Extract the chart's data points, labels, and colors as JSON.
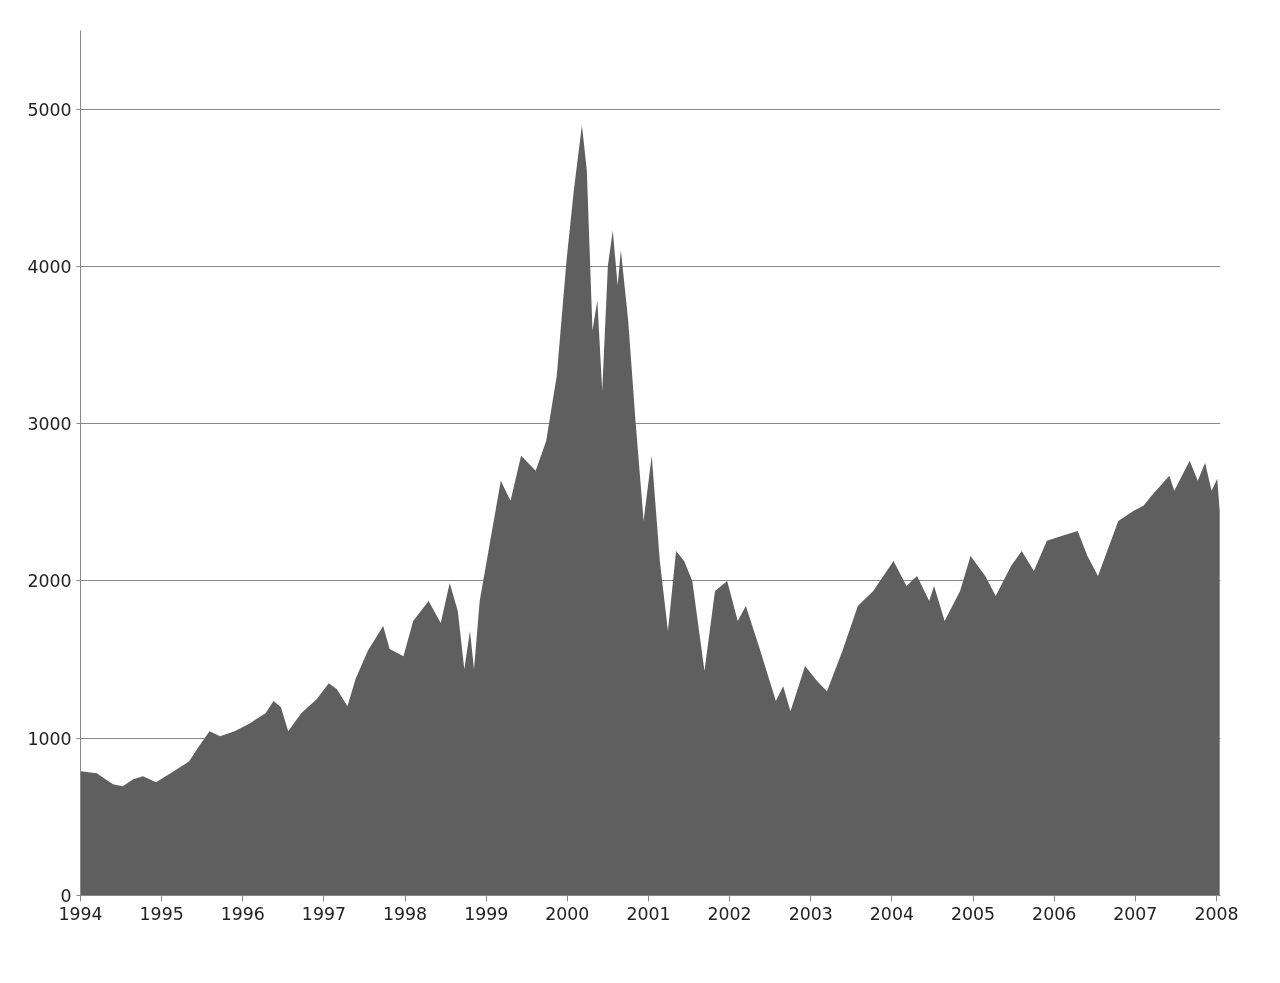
{
  "chart_data": {
    "type": "area",
    "x": [
      1994.0,
      1994.2,
      1994.4,
      1994.52,
      1994.65,
      1994.77,
      1994.93,
      1995.15,
      1995.34,
      1995.46,
      1995.59,
      1995.72,
      1995.9,
      1996.09,
      1996.28,
      1996.38,
      1996.47,
      1996.56,
      1996.72,
      1996.91,
      1997.06,
      1997.16,
      1997.29,
      1997.39,
      1997.54,
      1997.73,
      1997.81,
      1997.98,
      1998.1,
      1998.29,
      1998.44,
      1998.55,
      1998.65,
      1998.73,
      1998.8,
      1998.85,
      1998.92,
      1999.05,
      1999.18,
      1999.3,
      1999.43,
      1999.61,
      1999.74,
      1999.87,
      1999.99,
      2000.08,
      2000.18,
      2000.24,
      2000.31,
      2000.37,
      2000.43,
      2000.5,
      2000.56,
      2000.62,
      2000.66,
      2000.75,
      2000.84,
      2000.94,
      2001.04,
      2001.14,
      2001.24,
      2001.34,
      2001.44,
      2001.54,
      2001.69,
      2001.82,
      2001.97,
      2002.1,
      2002.2,
      2002.38,
      2002.57,
      2002.66,
      2002.75,
      2002.83,
      2002.93,
      2003.08,
      2003.2,
      2003.39,
      2003.58,
      2003.77,
      2004.02,
      2004.18,
      2004.31,
      2004.46,
      2004.52,
      2004.65,
      2004.84,
      2004.97,
      2005.15,
      2005.28,
      2005.47,
      2005.6,
      2005.75,
      2005.91,
      2006.1,
      2006.29,
      2006.41,
      2006.54,
      2006.79,
      2006.98,
      2007.1,
      2007.2,
      2007.42,
      2007.48,
      2007.67,
      2007.77,
      2007.86,
      2007.94,
      2008.01,
      2008.04
    ],
    "series": [
      {
        "color": "#5f5f5f",
        "values": [
          790,
          777,
          707,
          694,
          739,
          758,
          720,
          790,
          853,
          949,
          1045,
          1013,
          1045,
          1096,
          1159,
          1236,
          1197,
          1045,
          1159,
          1248,
          1350,
          1312,
          1204,
          1376,
          1554,
          1713,
          1567,
          1522,
          1745,
          1873,
          1732,
          1987,
          1809,
          1439,
          1682,
          1439,
          1873,
          2255,
          2637,
          2510,
          2796,
          2701,
          2892,
          3306,
          4038,
          4484,
          4898,
          4611,
          3592,
          3783,
          3210,
          4006,
          4229,
          3879,
          4102,
          3656,
          3019,
          2382,
          2796,
          2127,
          1682,
          2191,
          2127,
          2000,
          1427,
          1936,
          2000,
          1745,
          1841,
          1554,
          1236,
          1331,
          1172,
          1299,
          1459,
          1363,
          1299,
          1554,
          1841,
          1936,
          2127,
          1968,
          2032,
          1873,
          1968,
          1745,
          1936,
          2159,
          2032,
          1904,
          2096,
          2191,
          2064,
          2255,
          2287,
          2318,
          2159,
          2032,
          2382,
          2446,
          2478,
          2541,
          2669,
          2573,
          2764,
          2637,
          2752,
          2573,
          2650,
          2446
        ]
      }
    ],
    "xlim": [
      1994,
      2008.05
    ],
    "xticks": [
      1994,
      1995,
      1996,
      1997,
      1998,
      1999,
      2000,
      2001,
      2002,
      2003,
      2004,
      2005,
      2006,
      2007,
      2008
    ],
    "ylim": [
      0,
      5500
    ],
    "yticks": [
      0,
      1000,
      2000,
      3000,
      4000,
      5000
    ],
    "grid": "y"
  }
}
